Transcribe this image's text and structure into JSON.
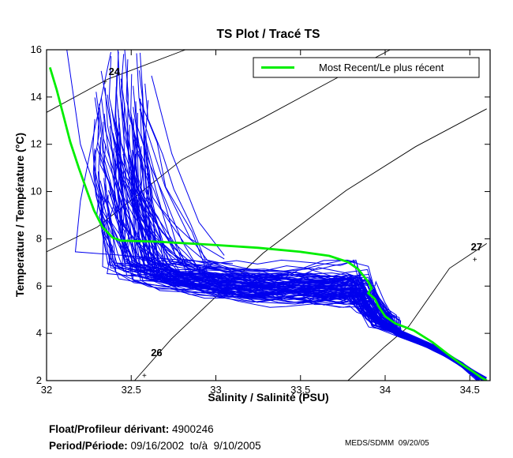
{
  "title": "TS Plot / Tracé TS",
  "legend": {
    "label": "Most Recent/Le plus récent"
  },
  "footer": {
    "float_label": "Float/Profileur dérivant:",
    "float_value": " 4900246",
    "period_label": "Period/Période:",
    "period_value": " 09/16/2002  to/à  9/10/2005",
    "credit": "MEDS/SDMM  09/20/05"
  },
  "chart_data": {
    "type": "line",
    "title": "TS Plot / Tracé TS",
    "legend_position": "top-right",
    "grid": false,
    "axes": {
      "x": {
        "label": "Salinity / Salinité (PSU)",
        "min": 32,
        "max": 34.62,
        "ticks": [
          32,
          32.5,
          33,
          33.5,
          34,
          34.5
        ],
        "tick_labels": [
          "32",
          "32.5",
          "33",
          "33.5",
          "34",
          "34.5"
        ]
      },
      "y": {
        "label": "Temperature / Température (°C)",
        "min": 2,
        "max": 16,
        "ticks": [
          2,
          4,
          6,
          8,
          10,
          12,
          14,
          16
        ],
        "tick_labels": [
          "2",
          "4",
          "6",
          "8",
          "10",
          "12",
          "14",
          "16"
        ]
      }
    },
    "colors": {
      "profiles": "#0000ee",
      "most_recent": "#00ee00",
      "contours": "#000000"
    },
    "contours": [
      {
        "label": "24",
        "points": [
          [
            32.0,
            13.35
          ],
          [
            32.36,
            14.75
          ],
          [
            32.82,
            16.0
          ]
        ],
        "label_at": [
          32.4,
          14.93
        ],
        "tick_at": [
          32.345,
          14.66
        ]
      },
      {
        "label": "",
        "points": [
          [
            32.0,
            7.45
          ],
          [
            32.3,
            8.5
          ],
          [
            32.8,
            11.35
          ],
          [
            33.26,
            13.05
          ],
          [
            33.7,
            14.75
          ],
          [
            34.03,
            16.0
          ]
        ]
      },
      {
        "label": "26",
        "points": [
          [
            32.52,
            2.0
          ],
          [
            32.74,
            3.78
          ],
          [
            33.0,
            5.55
          ],
          [
            33.28,
            7.4
          ],
          [
            33.77,
            10.05
          ],
          [
            34.18,
            11.9
          ],
          [
            34.6,
            13.5
          ]
        ],
        "label_at": [
          32.65,
          3.04
        ],
        "tick_at": [
          32.578,
          2.23
        ]
      },
      {
        "label": "27",
        "points": [
          [
            33.78,
            2.0
          ],
          [
            34.0,
            3.45
          ],
          [
            34.14,
            4.3
          ],
          [
            34.38,
            6.75
          ],
          [
            34.6,
            7.8
          ]
        ],
        "label_at": [
          34.54,
          7.51
        ],
        "tick_at": [
          34.53,
          7.15
        ]
      }
    ],
    "most_recent": {
      "name": "Most Recent/Le plus récent",
      "points": [
        [
          32.02,
          15.25
        ],
        [
          32.06,
          14.3
        ],
        [
          32.1,
          13.2
        ],
        [
          32.14,
          12.1
        ],
        [
          32.19,
          11.0
        ],
        [
          32.24,
          10.0
        ],
        [
          32.28,
          9.2
        ],
        [
          32.33,
          8.5
        ],
        [
          32.39,
          8.05
        ],
        [
          32.44,
          7.92
        ],
        [
          32.65,
          7.88
        ],
        [
          32.95,
          7.76
        ],
        [
          33.25,
          7.62
        ],
        [
          33.5,
          7.45
        ],
        [
          33.67,
          7.28
        ],
        [
          33.78,
          7.02
        ],
        [
          33.84,
          6.72
        ],
        [
          33.87,
          6.45
        ],
        [
          33.9,
          6.18
        ],
        [
          33.92,
          5.92
        ],
        [
          33.9,
          5.7
        ],
        [
          33.94,
          5.45
        ],
        [
          33.96,
          5.15
        ],
        [
          34.0,
          4.72
        ],
        [
          34.06,
          4.42
        ],
        [
          34.17,
          4.12
        ],
        [
          34.28,
          3.62
        ],
        [
          34.37,
          3.12
        ],
        [
          34.44,
          2.75
        ],
        [
          34.51,
          2.42
        ],
        [
          34.57,
          2.12
        ],
        [
          34.6,
          2.0
        ]
      ]
    },
    "profiles_spec": {
      "count": 95,
      "seed": 1337,
      "top_s": {
        "min": 32.28,
        "max": 32.6
      },
      "top_t": {
        "min": 9.3,
        "max": 16.0
      },
      "knee_t": {
        "min": 6.2,
        "max": 7.3
      },
      "band_t": {
        "min": 4.95,
        "max": 7.1
      },
      "band_end_s": {
        "min": 33.78,
        "max": 33.95
      },
      "step_t": {
        "min": 4.25,
        "max": 4.8
      },
      "end_s": {
        "min": 34.54,
        "max": 34.6
      },
      "end_t": {
        "min": 2.0,
        "max": 2.15
      }
    },
    "outlier_profiles": [
      [
        [
          32.38,
          15.9
        ],
        [
          32.28,
          12.5
        ],
        [
          32.2,
          9.6
        ],
        [
          32.17,
          7.45
        ],
        [
          32.45,
          7.3
        ],
        [
          32.8,
          7.1
        ],
        [
          33.1,
          6.95
        ]
      ],
      [
        [
          32.12,
          16.0
        ],
        [
          32.2,
          12.0
        ],
        [
          32.33,
          9.2
        ],
        [
          32.45,
          7.6
        ]
      ],
      [
        [
          32.62,
          14.9
        ],
        [
          32.74,
          11.6
        ],
        [
          32.9,
          8.7
        ],
        [
          33.05,
          7.3
        ]
      ],
      [
        [
          32.55,
          13.5
        ],
        [
          32.7,
          10.2
        ],
        [
          32.85,
          8.0
        ],
        [
          33.05,
          7.15
        ]
      ]
    ]
  }
}
